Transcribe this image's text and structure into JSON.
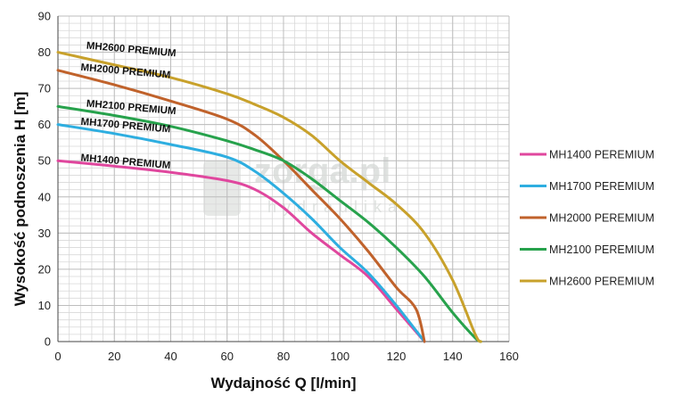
{
  "watermark": {
    "main": "zorga.pl",
    "sub": "hydraulika"
  },
  "chart_data": {
    "type": "line",
    "xlabel": "Wydajność Q [l/min]",
    "ylabel": "Wysokość podnoszenia H [m]",
    "xlim": [
      0,
      160
    ],
    "ylim": [
      0,
      90
    ],
    "xticks": [
      0,
      20,
      40,
      60,
      80,
      100,
      120,
      140,
      160
    ],
    "yticks": [
      0,
      10,
      20,
      30,
      40,
      50,
      60,
      70,
      80,
      90
    ],
    "grid": true,
    "legend_position": "right",
    "series": [
      {
        "name": "MH1400 PEREMIUM",
        "curve_label": "MH1400 PREMIUM",
        "color": "#e0479e",
        "points": [
          [
            0,
            50
          ],
          [
            20,
            48.5
          ],
          [
            40,
            46.8
          ],
          [
            60,
            44.5
          ],
          [
            70,
            42
          ],
          [
            80,
            37
          ],
          [
            90,
            30
          ],
          [
            100,
            24
          ],
          [
            110,
            18
          ],
          [
            120,
            9
          ],
          [
            130,
            0
          ]
        ]
      },
      {
        "name": "MH1700 PEREMIUM",
        "curve_label": "MH1700 PREMIUM",
        "color": "#2eaee0",
        "points": [
          [
            0,
            60
          ],
          [
            20,
            57.5
          ],
          [
            40,
            54.5
          ],
          [
            60,
            51
          ],
          [
            70,
            47
          ],
          [
            80,
            41
          ],
          [
            90,
            34
          ],
          [
            100,
            26
          ],
          [
            110,
            19
          ],
          [
            120,
            10
          ],
          [
            130,
            0
          ]
        ]
      },
      {
        "name": "MH2000 PEREMIUM",
        "curve_label": "MH2000 PREMIUM",
        "color": "#c0622b",
        "points": [
          [
            0,
            75
          ],
          [
            20,
            71
          ],
          [
            40,
            66.5
          ],
          [
            60,
            61.5
          ],
          [
            70,
            57
          ],
          [
            80,
            50
          ],
          [
            90,
            42
          ],
          [
            100,
            34
          ],
          [
            110,
            25
          ],
          [
            120,
            15
          ],
          [
            127,
            9
          ],
          [
            130,
            0
          ]
        ]
      },
      {
        "name": "MH2100 PEREMIUM",
        "curve_label": "MH2100 PREMIUM",
        "color": "#27a24c",
        "points": [
          [
            0,
            65
          ],
          [
            20,
            62.5
          ],
          [
            40,
            59.5
          ],
          [
            60,
            55.5
          ],
          [
            70,
            53
          ],
          [
            80,
            50
          ],
          [
            90,
            45
          ],
          [
            100,
            39
          ],
          [
            110,
            33
          ],
          [
            120,
            26
          ],
          [
            130,
            18
          ],
          [
            140,
            8
          ],
          [
            148,
            1
          ],
          [
            150,
            0
          ]
        ]
      },
      {
        "name": "MH2600 PEREMIUM",
        "curve_label": "MH2600 PREMIUM",
        "color": "#c8a12b",
        "points": [
          [
            0,
            80
          ],
          [
            20,
            76.5
          ],
          [
            40,
            73
          ],
          [
            60,
            68.5
          ],
          [
            70,
            65.5
          ],
          [
            80,
            62
          ],
          [
            90,
            57
          ],
          [
            100,
            50
          ],
          [
            110,
            44
          ],
          [
            120,
            38
          ],
          [
            130,
            30
          ],
          [
            140,
            17
          ],
          [
            148,
            2
          ],
          [
            150,
            0
          ]
        ]
      }
    ]
  }
}
